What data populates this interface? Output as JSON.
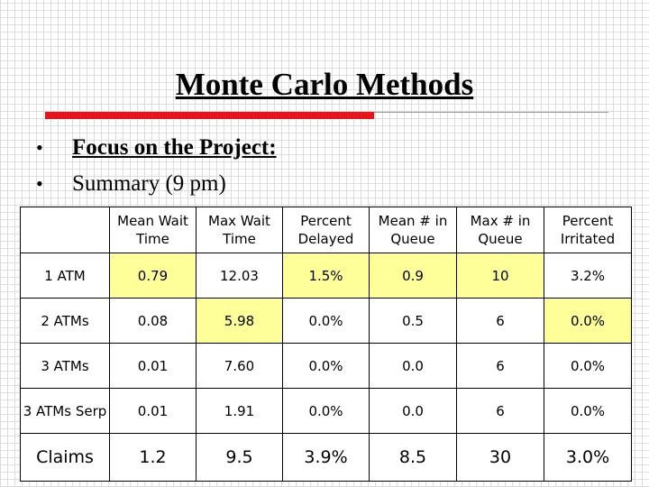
{
  "slide": {
    "title": "Monte Carlo Methods",
    "bullets": [
      {
        "marker": "•",
        "text": "Focus on the Project:",
        "bold_underline": true
      },
      {
        "marker": "•",
        "text": "Summary (9 pm)",
        "bold_underline": false
      }
    ]
  },
  "table": {
    "columns": [
      "",
      "Mean Wait Time",
      "Max Wait Time",
      "Percent Delayed",
      "Mean # in Queue",
      "Max # in Queue",
      "Percent Irritated"
    ],
    "rows": [
      {
        "label": "1 ATM",
        "cells": [
          "0.79",
          "12.03",
          "1.5%",
          "0.9",
          "10",
          "3.2%"
        ],
        "highlight": [
          true,
          false,
          true,
          true,
          true,
          false
        ]
      },
      {
        "label": "2 ATMs",
        "cells": [
          "0.08",
          "5.98",
          "0.0%",
          "0.5",
          "6",
          "0.0%"
        ],
        "highlight": [
          false,
          true,
          false,
          false,
          false,
          true
        ]
      },
      {
        "label": "3 ATMs",
        "cells": [
          "0.01",
          "7.60",
          "0.0%",
          "0.0",
          "6",
          "0.0%"
        ],
        "highlight": [
          false,
          false,
          false,
          false,
          false,
          false
        ]
      },
      {
        "label": "3 ATMs Serp",
        "cells": [
          "0.01",
          "1.91",
          "0.0%",
          "0.0",
          "6",
          "0.0%"
        ],
        "highlight": [
          false,
          false,
          false,
          false,
          false,
          false
        ]
      },
      {
        "label": "Claims",
        "cells": [
          "1.2",
          "9.5",
          "3.9%",
          "8.5",
          "30",
          "3.0%"
        ],
        "highlight": [
          false,
          false,
          false,
          false,
          false,
          false
        ]
      }
    ]
  },
  "colors": {
    "highlight": "#ffff99",
    "accent_rule": "#e8141b",
    "grid_background": "#dcdcdc"
  }
}
